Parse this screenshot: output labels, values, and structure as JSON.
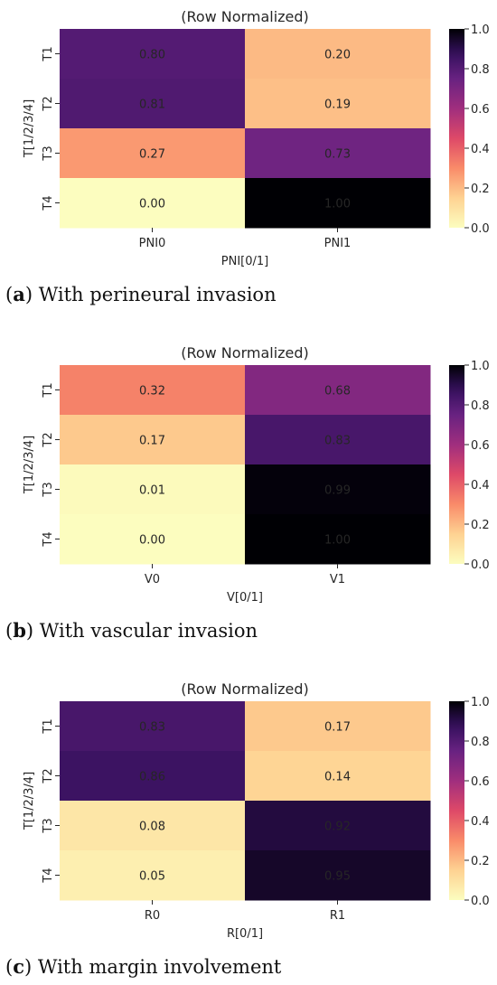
{
  "chart_data": [
    {
      "type": "heatmap",
      "title": "(Row Normalized)",
      "xlabel": "PNI[0/1]",
      "ylabel": "T[1/2/3/4]",
      "x_categories": [
        "PNI0",
        "PNI1"
      ],
      "y_categories": [
        "T1",
        "T2",
        "T3",
        "T4"
      ],
      "values": [
        [
          0.8,
          0.2
        ],
        [
          0.81,
          0.19
        ],
        [
          0.27,
          0.73
        ],
        [
          0.0,
          1.0
        ]
      ],
      "value_labels": [
        [
          "0.80",
          "0.20"
        ],
        [
          "0.81",
          "0.19"
        ],
        [
          "0.27",
          "0.73"
        ],
        [
          "0.00",
          "1.00"
        ]
      ],
      "colorbar": {
        "range": [
          0.0,
          1.0
        ],
        "ticks": [
          "0.0",
          "0.2",
          "0.4",
          "0.6",
          "0.8",
          "1.0"
        ],
        "colormap": "magma_r"
      },
      "caption": {
        "letter": "a",
        "text": "With perineural invasion"
      }
    },
    {
      "type": "heatmap",
      "title": "(Row Normalized)",
      "xlabel": "V[0/1]",
      "ylabel": "T[1/2/3/4]",
      "x_categories": [
        "V0",
        "V1"
      ],
      "y_categories": [
        "T1",
        "T2",
        "T3",
        "T4"
      ],
      "values": [
        [
          0.32,
          0.68
        ],
        [
          0.17,
          0.83
        ],
        [
          0.01,
          0.99
        ],
        [
          0.0,
          1.0
        ]
      ],
      "value_labels": [
        [
          "0.32",
          "0.68"
        ],
        [
          "0.17",
          "0.83"
        ],
        [
          "0.01",
          "0.99"
        ],
        [
          "0.00",
          "1.00"
        ]
      ],
      "colorbar": {
        "range": [
          0.0,
          1.0
        ],
        "ticks": [
          "0.0",
          "0.2",
          "0.4",
          "0.6",
          "0.8",
          "1.0"
        ],
        "colormap": "magma_r"
      },
      "caption": {
        "letter": "b",
        "text": "With vascular invasion"
      }
    },
    {
      "type": "heatmap",
      "title": "(Row Normalized)",
      "xlabel": "R[0/1]",
      "ylabel": "T[1/2/3/4]",
      "x_categories": [
        "R0",
        "R1"
      ],
      "y_categories": [
        "T1",
        "T2",
        "T3",
        "T4"
      ],
      "values": [
        [
          0.83,
          0.17
        ],
        [
          0.86,
          0.14
        ],
        [
          0.08,
          0.92
        ],
        [
          0.05,
          0.95
        ]
      ],
      "value_labels": [
        [
          "0.83",
          "0.17"
        ],
        [
          "0.86",
          "0.14"
        ],
        [
          "0.08",
          "0.92"
        ],
        [
          "0.05",
          "0.95"
        ]
      ],
      "colorbar": {
        "range": [
          0.0,
          1.0
        ],
        "ticks": [
          "0.0",
          "0.2",
          "0.4",
          "0.6",
          "0.8",
          "1.0"
        ],
        "colormap": "magma_r"
      },
      "caption": {
        "letter": "c",
        "text": "With margin involvement"
      }
    }
  ]
}
